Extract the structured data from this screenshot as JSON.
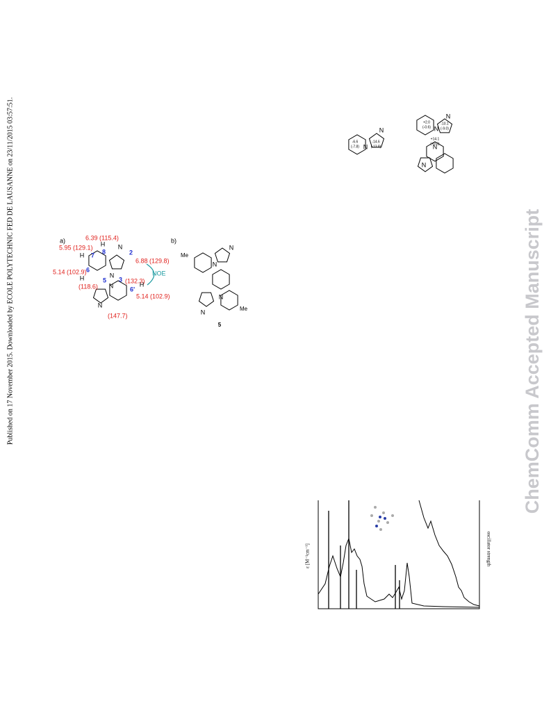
{
  "side_note": "Published on 17 November 2015. Downloaded by ECOLE POLYTECHNIC FED DE LAUSANNE on 23/11/2015 03:57:51.",
  "watermark": "ChemComm Accepted Manuscript",
  "scheme_top": {
    "left": [
      "N",
      "N",
      "-6.6",
      "(-7.8)",
      "-14.6",
      "(-13.8)"
    ],
    "right": [
      "N",
      "N",
      "N",
      "N",
      "+2.0",
      "(-0.6)",
      "-10.1",
      "(-9.0)",
      "+14.1",
      "(+9.6)"
    ]
  },
  "figure_a": {
    "label": "a)",
    "shifts": [
      "6.39 (115.4)",
      "5.95 (129.1)",
      "6.88 (129.8)",
      "5.14 (102.9)",
      "(118.6)",
      "(132.3)",
      "5.14 (102.9)",
      "(147.7)"
    ],
    "positions": [
      "8",
      "7",
      "6",
      "5",
      "3",
      "2",
      "6'"
    ],
    "atoms": [
      "H",
      "H",
      "H",
      "H",
      "N",
      "N",
      "N",
      "N"
    ],
    "noe": "NOE"
  },
  "figure_b": {
    "label": "b)",
    "substituents": [
      "Me",
      "Me"
    ],
    "compound": "5",
    "atoms": [
      "N",
      "N",
      "N",
      "N"
    ]
  },
  "spectrum": {
    "y_label": "ε [M⁻¹cm⁻¹]",
    "y2_label": "oscillator strength"
  }
}
